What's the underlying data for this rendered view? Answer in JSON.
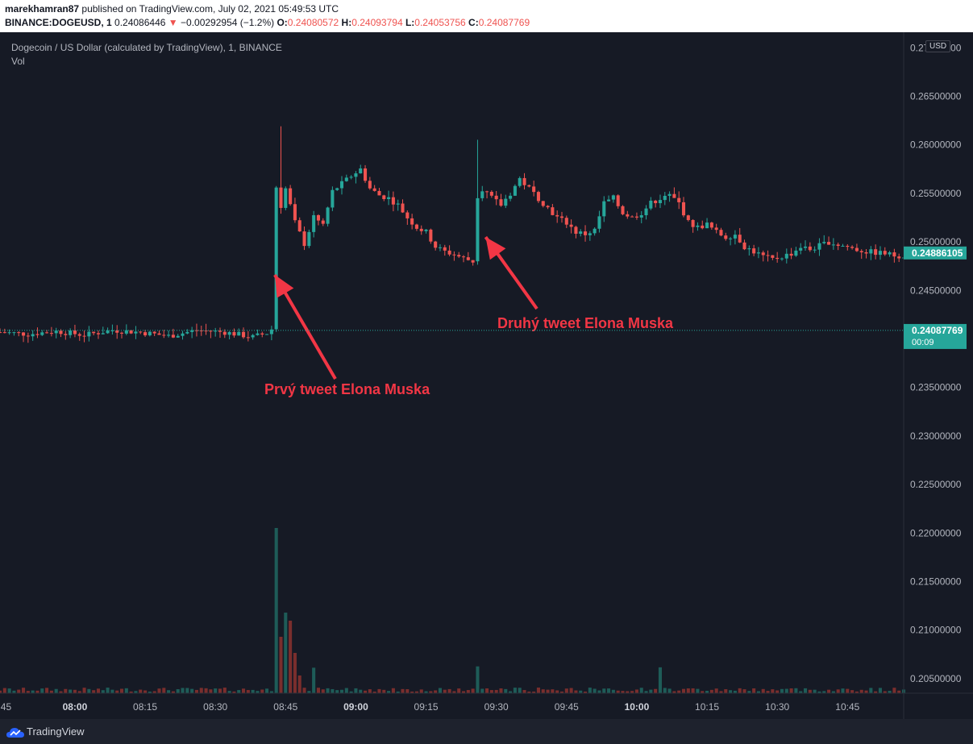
{
  "header": {
    "publisher": "marekhamran87",
    "published_text": "published on TradingView.com, July 02, 2021 05:49:53 UTC",
    "symbol": "BINANCE:DOGEUSD, 1",
    "last": "0.24086446",
    "change_arrow": "▼",
    "change": "−0.00292954 (−1.2%)",
    "o_label": "O:",
    "o_value": "0.24080572",
    "h_label": "H:",
    "h_value": "0.24093794",
    "l_label": "L:",
    "l_value": "0.24053756",
    "c_label": "C:",
    "c_value": "0.24087769"
  },
  "legend": {
    "title": "Dogecoin / US Dollar (calculated by TradingView), 1, BINANCE",
    "vol": "Vol"
  },
  "currency_button": "USD",
  "footer": {
    "brand": "TradingView"
  },
  "colors": {
    "background": "#161a25",
    "up": "#26a69a",
    "down": "#ef5350",
    "annotation": "#f23645",
    "label_bg": "#26a69a"
  },
  "chart_data": {
    "type": "candlestick",
    "title": "Dogecoin / US Dollar (calculated by TradingView), 1, BINANCE",
    "ylabel": "USD",
    "ylim": [
      0.2035,
      0.2716
    ],
    "y_ticks": [
      "0.27000000",
      "0.26500000",
      "0.26000000",
      "0.25500000",
      "0.25000000",
      "0.24500000",
      "0.23500000",
      "0.23000000",
      "0.22500000",
      "0.22000000",
      "0.21500000",
      "0.21000000",
      "0.20500000"
    ],
    "y_tick_values": [
      0.27,
      0.265,
      0.26,
      0.255,
      0.25,
      0.245,
      0.235,
      0.23,
      0.225,
      0.22,
      0.215,
      0.21,
      0.205
    ],
    "partial_top_tick": "0.27500000",
    "x_ticks": [
      ":45",
      "08:00",
      "08:15",
      "08:30",
      "08:45",
      "09:00",
      "09:15",
      "09:30",
      "09:45",
      "10:00",
      "10:15",
      "10:30",
      "10:45"
    ],
    "x_tick_minutes": [
      465,
      480,
      495,
      510,
      525,
      540,
      555,
      570,
      585,
      600,
      615,
      630,
      645
    ],
    "x_range_minutes": [
      464,
      657
    ],
    "last_price_label": "0.24886105",
    "last_price": 0.24886105,
    "current_price_label": "0.24087769",
    "current_price": 0.24087769,
    "countdown": "00:09",
    "annotations": [
      {
        "text": "Prvý tweet Elona Muska",
        "points_to_minute": 522,
        "points_to_price": 0.2466
      },
      {
        "text": "Druhý tweet Elona Muska",
        "points_to_minute": 566,
        "points_to_price": 0.2505
      }
    ],
    "grid": false,
    "legend_position": "top-left",
    "volume_series": {
      "name": "Vol"
    }
  }
}
